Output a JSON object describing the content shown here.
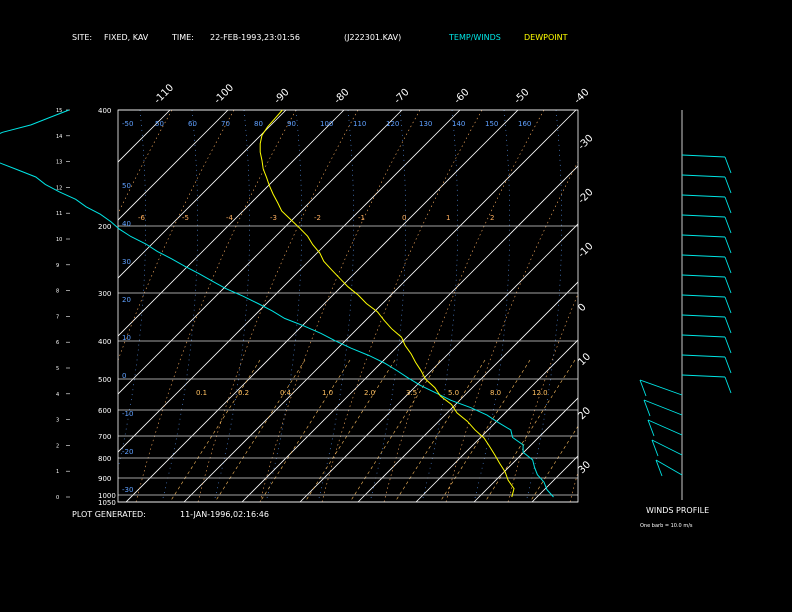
{
  "header": {
    "site_label": "SITE:",
    "site_value": "FIXED, KAV",
    "time_label": "TIME:",
    "time_value": "22-FEB-1993,23:01:56",
    "station_id": "(J222301.KAV)",
    "temp_winds_label": "TEMP/WINDS",
    "dewpoint_label": "DEWPOINT"
  },
  "footer": {
    "generated_label": "PLOT GENERATED:",
    "generated_value": "11-JAN-1996,02:16:46"
  },
  "winds_panel": {
    "title": "WINDS PROFILE",
    "note": "One barb = 10.0 m/s"
  },
  "colors": {
    "background": "#000000",
    "temperature": "#00e5e5",
    "dewpoint": "#ffff00",
    "isotherm": "#ffffff",
    "isobar": "#d8d8d8",
    "dry_adiabat": "#ffb060",
    "mixing_ratio": "#ffc060",
    "moist_adiabat": "#5fa0ff"
  },
  "chart_data": {
    "type": "line",
    "chart_kind": "skew-T log-p",
    "pressure_ticks": [
      400,
      200,
      300,
      400,
      500,
      600,
      700,
      800,
      900,
      1000,
      1050
    ],
    "pressure_tick_labels": [
      "400",
      "200",
      "300",
      "400",
      "500",
      "600",
      "700",
      "800",
      "900",
      "1000",
      "1050"
    ],
    "height_km_ticks": [
      "0",
      "1",
      "2",
      "3",
      "4",
      "5",
      "6",
      "7",
      "8",
      "9",
      "10",
      "11",
      "12",
      "13",
      "14",
      "15"
    ],
    "isotherm_labels_top": [
      "-110",
      "-100",
      "-90",
      "-80",
      "-70",
      "-60",
      "-50",
      "-40"
    ],
    "isotherm_labels_right": [
      "-30",
      "-20",
      "-10",
      "0",
      "10",
      "20",
      "30"
    ],
    "moist_adiabat_labels_top": [
      "-50",
      "50",
      "60",
      "70",
      "80",
      "90",
      "100",
      "110",
      "120",
      "130",
      "140",
      "150",
      "160"
    ],
    "moist_adiabat_labels_left": [
      "50",
      "40",
      "30",
      "20",
      "10",
      "0",
      "-10",
      "-20",
      "-30"
    ],
    "dry_adiabat_labels": [
      "-6",
      "-5",
      "-4",
      "-3",
      "-2",
      "-1",
      "0",
      "1",
      "2"
    ],
    "mixing_ratio_labels": [
      "0.1",
      "0.2",
      "0.4",
      "1.0",
      "2.0",
      "3.5",
      "5.0",
      "8.0",
      "12.0"
    ],
    "series": [
      {
        "name": "TEMP/WINDS",
        "points_T_p": [
          [
            -44.0,
            400
          ],
          [
            -46.0,
            360
          ],
          [
            -48.0,
            320
          ],
          [
            -51.0,
            290
          ],
          [
            -52.8,
            260
          ],
          [
            -53.3,
            240
          ],
          [
            -52.8,
            220
          ],
          [
            -51.5,
            200
          ],
          [
            -49.5,
            180
          ],
          [
            -47.5,
            165
          ],
          [
            -46.5,
            150
          ],
          [
            -45.0,
            140
          ],
          [
            -43.3,
            130
          ],
          [
            -42.2,
            120
          ],
          [
            -40.7,
            115
          ],
          [
            -39.6,
            112
          ],
          [
            -38.7,
            108
          ],
          [
            -37.5,
            104
          ],
          [
            -35.9,
            101
          ],
          [
            -34.7,
            99
          ],
          [
            -33.2,
            96
          ],
          [
            -31.8,
            93
          ],
          [
            -30.3,
            90
          ],
          [
            -28.9,
            87
          ],
          [
            -27.5,
            84
          ],
          [
            -25.7,
            81
          ],
          [
            -24.1,
            78
          ],
          [
            -22.6,
            75
          ],
          [
            -21.3,
            72
          ],
          [
            -19.3,
            69
          ],
          [
            -17.5,
            66
          ],
          [
            -16.0,
            63
          ],
          [
            -14.3,
            60
          ],
          [
            -12.4,
            57
          ],
          [
            -10.8,
            54
          ],
          [
            -9.5,
            51
          ],
          [
            -8.3,
            48
          ],
          [
            -7.0,
            45
          ],
          [
            -5.4,
            42
          ],
          [
            -3.8,
            39
          ],
          [
            -1.7,
            36
          ],
          [
            0.0,
            33
          ],
          [
            1.2,
            30
          ],
          [
            2.5,
            27
          ],
          [
            2.7,
            24
          ],
          [
            3.8,
            21
          ],
          [
            3.8,
            18
          ],
          [
            4.8,
            15
          ],
          [
            5.0,
            12
          ],
          [
            5.3,
            9
          ],
          [
            6.0,
            6
          ],
          [
            6.3,
            3
          ],
          [
            7.0,
            0
          ]
        ],
        "note": "profile traced from the plot, ordered top (upper air) to surface"
      },
      {
        "name": "DEWPOINT",
        "points_T_p": [
          [
            -58.0,
            400
          ],
          [
            -60.0,
            370
          ],
          [
            -62.0,
            330
          ],
          [
            -63.5,
            300
          ],
          [
            -64.0,
            270
          ],
          [
            -64.0,
            250
          ],
          [
            -63.5,
            230
          ],
          [
            -63.2,
            210
          ],
          [
            -62.3,
            195
          ],
          [
            -61.5,
            185
          ],
          [
            -60.5,
            170
          ],
          [
            -59.3,
            160
          ],
          [
            -58.2,
            150
          ],
          [
            -55.8,
            142
          ],
          [
            -53.4,
            136
          ],
          [
            -51.2,
            133
          ],
          [
            -49.8,
            131
          ],
          [
            -47.9,
            129
          ],
          [
            -46.8,
            127
          ],
          [
            -44.7,
            125
          ],
          [
            -42.5,
            122
          ],
          [
            -40.3,
            118
          ],
          [
            -37.5,
            114
          ],
          [
            -35.3,
            109
          ],
          [
            -32.3,
            104
          ],
          [
            -30.5,
            100
          ],
          [
            -28.5,
            96
          ],
          [
            -25.8,
            92
          ],
          [
            -24.8,
            87
          ],
          [
            -23.2,
            83
          ],
          [
            -22.0,
            78
          ],
          [
            -20.5,
            72
          ],
          [
            -19.3,
            66
          ],
          [
            -16.8,
            62
          ],
          [
            -15.3,
            57
          ],
          [
            -12.3,
            53
          ],
          [
            -10.8,
            47
          ],
          [
            -8.0,
            43
          ],
          [
            -6.0,
            38
          ],
          [
            -3.5,
            34
          ],
          [
            -2.0,
            29
          ],
          [
            -0.6,
            25
          ],
          [
            0.7,
            20
          ],
          [
            2.2,
            15
          ],
          [
            3.0,
            9
          ],
          [
            4.6,
            4
          ],
          [
            4.0,
            0
          ]
        ],
        "note": "profile traced from the plot, ordered top (upper air) to surface"
      }
    ],
    "wind_barbs_count": 17
  }
}
